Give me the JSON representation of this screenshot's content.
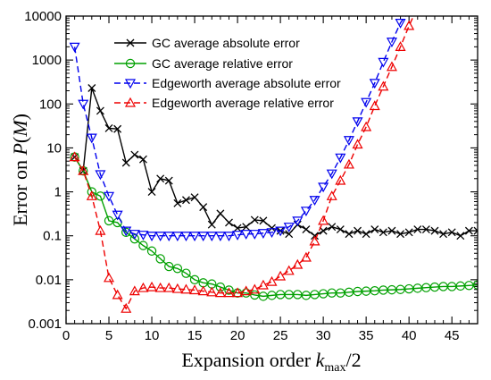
{
  "chart_data": {
    "type": "line",
    "title": "",
    "xlabel": "Expansion order k_max/2",
    "xlabel_main": "Expansion order ",
    "xlabel_k": "k",
    "xlabel_sub": "max",
    "xlabel_tail": "/2",
    "ylabel": "Error on P(M)",
    "ylabel_main": "Error on ",
    "ylabel_P": "P",
    "ylabel_open": "(",
    "ylabel_M": "M",
    "ylabel_close": ")",
    "xlim": [
      0,
      48
    ],
    "ylim": [
      0.001,
      10000
    ],
    "yscale": "log",
    "xticks": [
      0,
      5,
      10,
      15,
      20,
      25,
      30,
      35,
      40,
      45
    ],
    "xtick_labels": [
      "0",
      "5",
      "10",
      "15",
      "20",
      "25",
      "30",
      "35",
      "40",
      "45"
    ],
    "yticks": [
      0.001,
      0.01,
      0.1,
      1,
      10,
      100,
      1000,
      10000
    ],
    "ytick_labels": [
      "0.001",
      "0.01",
      "0.1",
      "1",
      "10",
      "100",
      "1000",
      "10000"
    ],
    "legend_position": "top-center",
    "series": [
      {
        "name": "GC average absolute error",
        "color": "#000000",
        "marker": "x",
        "dash": "solid",
        "x": [
          1,
          2,
          3,
          4,
          5,
          6,
          7,
          8,
          9,
          10,
          11,
          12,
          13,
          14,
          15,
          16,
          17,
          18,
          19,
          20,
          21,
          22,
          23,
          24,
          25,
          26,
          27,
          28,
          29,
          30,
          31,
          32,
          33,
          34,
          35,
          36,
          37,
          38,
          39,
          40,
          41,
          42,
          43,
          44,
          45,
          46,
          47,
          48
        ],
        "y": [
          6.2,
          3.0,
          230,
          70,
          28,
          27,
          4.6,
          7.0,
          5.5,
          1.0,
          2.0,
          1.8,
          0.55,
          0.65,
          0.75,
          0.45,
          0.18,
          0.32,
          0.2,
          0.15,
          0.16,
          0.23,
          0.22,
          0.15,
          0.13,
          0.11,
          0.18,
          0.14,
          0.1,
          0.13,
          0.16,
          0.14,
          0.11,
          0.13,
          0.11,
          0.14,
          0.12,
          0.13,
          0.11,
          0.12,
          0.14,
          0.14,
          0.13,
          0.11,
          0.12,
          0.1,
          0.13,
          0.13
        ]
      },
      {
        "name": "GC average relative error",
        "color": "#00a000",
        "marker": "circle",
        "dash": "solid",
        "x": [
          1,
          2,
          3,
          4,
          5,
          6,
          7,
          8,
          9,
          10,
          11,
          12,
          13,
          14,
          15,
          16,
          17,
          18,
          19,
          20,
          21,
          22,
          23,
          24,
          25,
          26,
          27,
          28,
          29,
          30,
          31,
          32,
          33,
          34,
          35,
          36,
          37,
          38,
          39,
          40,
          41,
          42,
          43,
          44,
          45,
          46,
          47,
          48
        ],
        "y": [
          6.2,
          3.0,
          1.0,
          0.8,
          0.22,
          0.2,
          0.12,
          0.085,
          0.06,
          0.045,
          0.03,
          0.02,
          0.018,
          0.014,
          0.01,
          0.0085,
          0.008,
          0.0068,
          0.0058,
          0.005,
          0.005,
          0.0045,
          0.0042,
          0.0044,
          0.0046,
          0.0046,
          0.0046,
          0.0044,
          0.0046,
          0.0048,
          0.005,
          0.005,
          0.0052,
          0.0054,
          0.0055,
          0.0056,
          0.0058,
          0.0059,
          0.006,
          0.0062,
          0.0064,
          0.0066,
          0.0068,
          0.007,
          0.007,
          0.0072,
          0.0074,
          0.0076
        ]
      },
      {
        "name": "Edgeworth average absolute error",
        "color": "#0000ee",
        "marker": "triangle-down",
        "dash": "dashed",
        "x": [
          1,
          2,
          3,
          4,
          5,
          6,
          7,
          8,
          9,
          10,
          11,
          12,
          13,
          14,
          15,
          16,
          17,
          18,
          19,
          20,
          21,
          22,
          23,
          24,
          25,
          26,
          27,
          28,
          29,
          30,
          31,
          32,
          33,
          34,
          35,
          36,
          37,
          38,
          39,
          40
        ],
        "y": [
          2000,
          100,
          17,
          2.5,
          0.8,
          0.3,
          0.13,
          0.11,
          0.105,
          0.1,
          0.1,
          0.1,
          0.1,
          0.1,
          0.1,
          0.1,
          0.1,
          0.1,
          0.1,
          0.105,
          0.11,
          0.11,
          0.115,
          0.12,
          0.13,
          0.16,
          0.22,
          0.37,
          0.65,
          1.3,
          2.6,
          6.0,
          15,
          40,
          110,
          300,
          900,
          2600,
          7000,
          13000
        ]
      },
      {
        "name": "Edgeworth average relative error",
        "color": "#ee0000",
        "marker": "triangle-up",
        "dash": "dashed",
        "x": [
          1,
          2,
          3,
          4,
          5,
          6,
          7,
          8,
          9,
          10,
          11,
          12,
          13,
          14,
          15,
          16,
          17,
          18,
          19,
          20,
          21,
          22,
          23,
          24,
          25,
          26,
          27,
          28,
          29,
          30,
          31,
          32,
          33,
          34,
          35,
          36,
          37,
          38,
          39,
          40,
          41
        ],
        "y": [
          6.2,
          3.0,
          0.8,
          0.13,
          0.011,
          0.0045,
          0.0022,
          0.0055,
          0.0065,
          0.0068,
          0.0065,
          0.0065,
          0.0062,
          0.006,
          0.0058,
          0.0055,
          0.0052,
          0.005,
          0.005,
          0.005,
          0.0055,
          0.006,
          0.0075,
          0.009,
          0.012,
          0.016,
          0.022,
          0.032,
          0.075,
          0.22,
          0.8,
          1.8,
          4.2,
          12,
          30,
          90,
          250,
          700,
          2000,
          6000,
          16000
        ]
      }
    ]
  }
}
